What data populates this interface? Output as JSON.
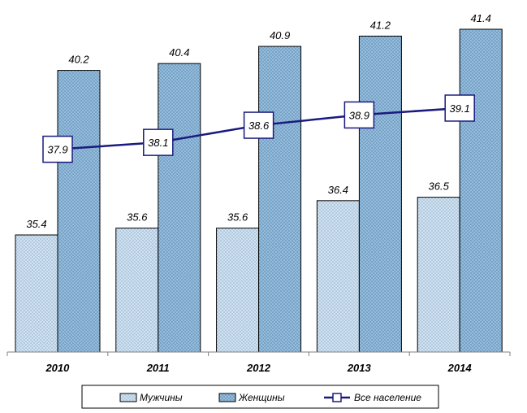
{
  "chart_data": {
    "type": "bar",
    "categories": [
      "2010",
      "2011",
      "2012",
      "2013",
      "2014"
    ],
    "ylim": [
      30,
      42
    ],
    "grid": false,
    "legend_position": "bottom",
    "series": [
      {
        "name": "Мужчины",
        "kind": "bar",
        "pattern": "light-crosshatch",
        "values": [
          35.4,
          35.6,
          35.6,
          36.4,
          36.5
        ]
      },
      {
        "name": "Женщины",
        "kind": "bar",
        "pattern": "dark-crosshatch",
        "values": [
          40.2,
          40.4,
          40.9,
          41.2,
          41.4
        ]
      },
      {
        "name": "Все население",
        "kind": "line",
        "color": "#1a1a80",
        "values": [
          37.9,
          38.1,
          38.6,
          38.9,
          39.1
        ]
      }
    ]
  },
  "colors": {
    "men_fill": "#dce9f5",
    "men_line": "#a9c4dd",
    "women_fill": "#9fc3df",
    "women_line": "#6f9dc4",
    "line": "#1a1a80",
    "axis": "#808080"
  }
}
